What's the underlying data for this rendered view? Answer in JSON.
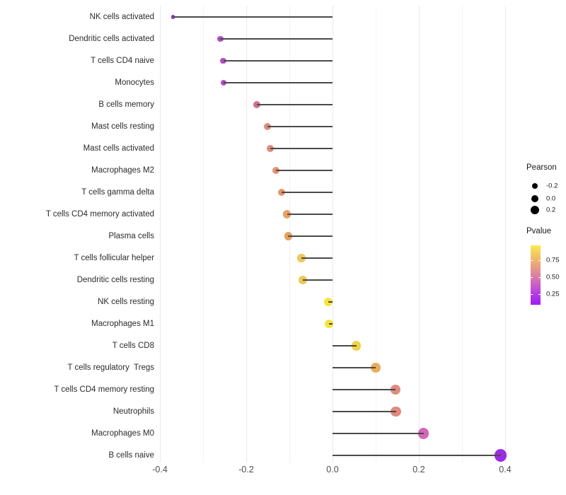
{
  "chart_data": {
    "type": "scatter",
    "subtype": "lollipop",
    "title": "",
    "xlabel": "",
    "ylabel": "",
    "grid": "vertical-only",
    "xlim": [
      -0.44,
      0.45
    ],
    "x_major_ticks": [
      -0.4,
      -0.2,
      0.0,
      0.2,
      0.4
    ],
    "x_tick_labels": [
      "-0.4",
      "-0.2",
      "0.0",
      "0.2",
      "0.4"
    ],
    "x_minor_ticks": [
      -0.3,
      -0.1,
      0.1,
      0.3
    ],
    "categories": [
      "NK cells activated",
      "Dendritic cells activated",
      "T cells CD4 naive",
      "Monocytes",
      "B cells memory",
      "Mast cells resting",
      "Mast cells activated",
      "Macrophages M2",
      "T cells gamma delta",
      "T cells CD4 memory activated",
      "Plasma cells",
      "T cells follicular helper",
      "Dendritic cells resting",
      "NK cells resting",
      "Macrophages M1",
      "T cells CD8",
      "T cells regulatory  Tregs",
      "T cells CD4 memory resting",
      "Neutrophils",
      "Macrophages M0",
      "B cells naive"
    ],
    "values": [
      -0.37,
      -0.26,
      -0.253,
      -0.252,
      -0.175,
      -0.151,
      -0.144,
      -0.131,
      -0.118,
      -0.105,
      -0.103,
      -0.072,
      -0.069,
      -0.01,
      -0.008,
      0.055,
      0.1,
      0.146,
      0.147,
      0.211,
      0.39
    ],
    "point_colors": [
      "#9C2CE0",
      "#B44EC9",
      "#B24DC8",
      "#B24DC7",
      "#D0708F",
      "#E08B80",
      "#E08B7D",
      "#E39470",
      "#E59569",
      "#E8A263",
      "#E8A15F",
      "#EDC85A",
      "#EDC757",
      "#F3E43B",
      "#F3E43B",
      "#EFD348",
      "#E9AC5C",
      "#E08B80",
      "#E08B80",
      "#D168B5",
      "#9D2BE1"
    ],
    "stem_color": "#4a4a4a",
    "legend": {
      "size_legend": {
        "title": "Pearson",
        "entries": [
          "-0.2",
          "0.0",
          "0.2"
        ],
        "entry_values": [
          -0.2,
          0.0,
          0.2
        ],
        "dot_color": "#000000"
      },
      "color_legend": {
        "title": "Pvalue",
        "ticks": [
          "0.75",
          "0.50",
          "0.25"
        ],
        "gradient_top_color": "#F8EA4E",
        "gradient_bottom_color": "#A21DF3"
      }
    }
  }
}
